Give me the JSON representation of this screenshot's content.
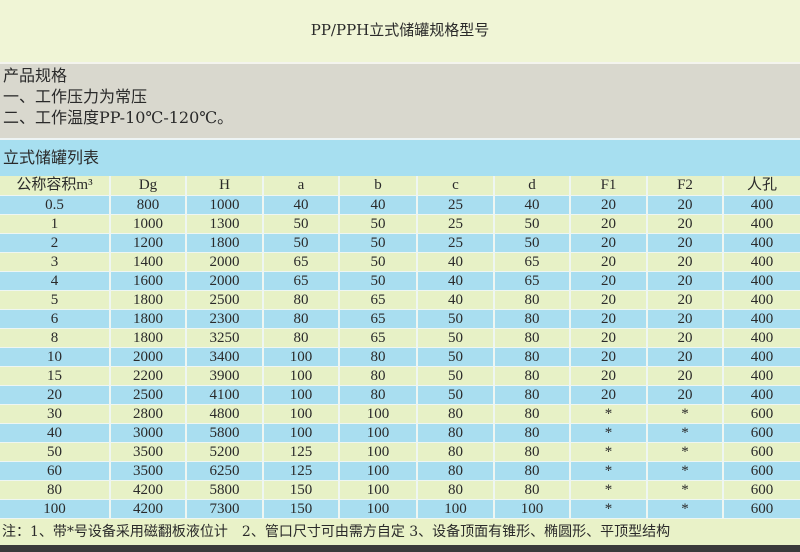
{
  "title": "PP/PPH立式储罐规格型号",
  "specs": {
    "heading": "产品规格",
    "items": [
      "一、工作压力为常压",
      "二、工作温度PP-10℃-120℃。"
    ]
  },
  "table_title": "立式储罐列表",
  "table": {
    "headers": [
      "公称容积m³",
      "Dg",
      "H",
      "a",
      "b",
      "c",
      "d",
      "F1",
      "F2",
      "人孔"
    ],
    "rows": [
      [
        "0.5",
        "800",
        "1000",
        "40",
        "40",
        "25",
        "40",
        "20",
        "20",
        "400"
      ],
      [
        "1",
        "1000",
        "1300",
        "50",
        "50",
        "25",
        "50",
        "20",
        "20",
        "400"
      ],
      [
        "2",
        "1200",
        "1800",
        "50",
        "50",
        "25",
        "50",
        "20",
        "20",
        "400"
      ],
      [
        "3",
        "1400",
        "2000",
        "65",
        "50",
        "40",
        "65",
        "20",
        "20",
        "400"
      ],
      [
        "4",
        "1600",
        "2000",
        "65",
        "50",
        "40",
        "65",
        "20",
        "20",
        "400"
      ],
      [
        "5",
        "1800",
        "2500",
        "80",
        "65",
        "40",
        "80",
        "20",
        "20",
        "400"
      ],
      [
        "6",
        "1800",
        "2300",
        "80",
        "65",
        "50",
        "80",
        "20",
        "20",
        "400"
      ],
      [
        "8",
        "1800",
        "3250",
        "80",
        "65",
        "50",
        "80",
        "20",
        "20",
        "400"
      ],
      [
        "10",
        "2000",
        "3400",
        "100",
        "80",
        "50",
        "80",
        "20",
        "20",
        "400"
      ],
      [
        "15",
        "2200",
        "3900",
        "100",
        "80",
        "50",
        "80",
        "20",
        "20",
        "400"
      ],
      [
        "20",
        "2500",
        "4100",
        "100",
        "80",
        "50",
        "80",
        "20",
        "20",
        "400"
      ],
      [
        "30",
        "2800",
        "4800",
        "100",
        "100",
        "80",
        "80",
        "*",
        "*",
        "600"
      ],
      [
        "40",
        "3000",
        "5800",
        "100",
        "100",
        "80",
        "80",
        "*",
        "*",
        "600"
      ],
      [
        "50",
        "3500",
        "5200",
        "125",
        "100",
        "80",
        "80",
        "*",
        "*",
        "600"
      ],
      [
        "60",
        "3500",
        "6250",
        "125",
        "100",
        "80",
        "80",
        "*",
        "*",
        "600"
      ],
      [
        "80",
        "4200",
        "5800",
        "150",
        "100",
        "80",
        "80",
        "*",
        "*",
        "600"
      ],
      [
        "100",
        "4200",
        "7300",
        "150",
        "100",
        "100",
        "100",
        "*",
        "*",
        "600"
      ]
    ]
  },
  "note": "注：1、带*号设备采用磁翻板液位计　2、管口尺寸可由需方自定 3、设备顶面有锥形、椭圆形、平顶型结构"
}
